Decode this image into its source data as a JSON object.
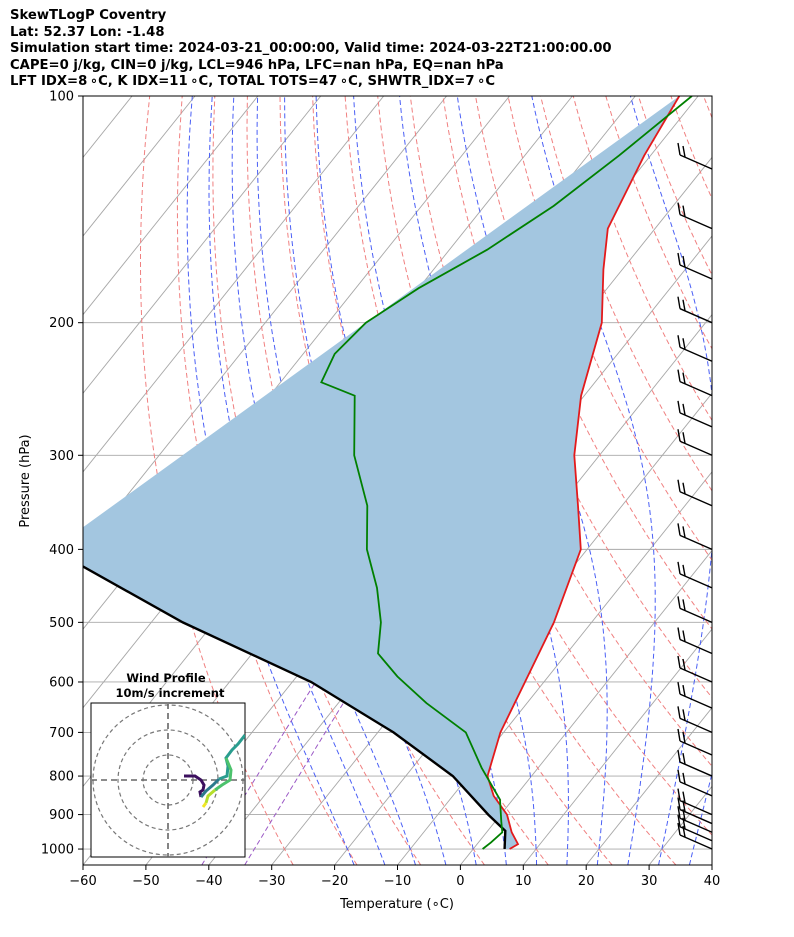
{
  "header": {
    "lines": [
      "SkewTLogP Coventry",
      "Lat: 52.37   Lon: -1.48",
      "Simulation start time: 2024-03-21_00:00:00, Valid time: 2024-03-22T21:00:00.00",
      "CAPE=0 j/kg, CIN=0 j/kg, LCL=946 hPa, LFC=nan hPa, EQ=nan hPa",
      "LFT IDX=8 ∘C, K IDX=11 ∘C, TOTAL TOTS=47 ∘C, SHWTR_IDX=7 ∘C"
    ]
  },
  "chart_data": {
    "type": "line",
    "xlabel": "Temperature (∘C)",
    "ylabel": "Pressure (hPa)",
    "xlim": [
      -60,
      40
    ],
    "ylim": [
      1050,
      100
    ],
    "y_scale": "log",
    "skew": true,
    "x_ticks": [
      -60,
      -50,
      -40,
      -30,
      -20,
      -10,
      0,
      10,
      20,
      30,
      40
    ],
    "y_ticks": [
      1000,
      900,
      800,
      700,
      600,
      500,
      400,
      300,
      200,
      100
    ],
    "grid": true,
    "colors": {
      "temperature": "#e31a1c",
      "dewpoint": "#008000",
      "parcel": "#000000",
      "shade": "#a3c6e0",
      "dry_adiabat": "#f08080",
      "moist_adiabat": "#4a5ff5",
      "mixing_ratio": "#9b59c6",
      "isotherm": "#a8a8a8",
      "barb": "#000000"
    },
    "series": [
      {
        "key": "temperature",
        "x": [
          5.8,
          6.5,
          4.0,
          1.0,
          -3.5,
          -7.0,
          -10.5,
          -13.0,
          -16.0,
          -21.0,
          -27.0,
          -34.0,
          -40.5,
          -46.5,
          -53.0,
          -57.5,
          -61.0,
          -63.0
        ],
        "y": [
          1000,
          985,
          950,
          900,
          850,
          800,
          700,
          600,
          500,
          400,
          350,
          300,
          250,
          200,
          170,
          150,
          120,
          100
        ]
      },
      {
        "key": "dewpoint",
        "x": [
          1.5,
          2.0,
          2.5,
          1.0,
          -2.0,
          -9.0,
          -16.0,
          -26.0,
          -34.0,
          -40.0,
          -43.5,
          -48.5,
          -55.0,
          -60.5,
          -69.0,
          -76.5,
          -83.5,
          -85.0,
          -84.0,
          -80.0,
          -74.0,
          -69.0,
          -65.0,
          -61.0
        ],
        "y": [
          1000,
          980,
          950,
          920,
          860,
          780,
          700,
          640,
          590,
          550,
          500,
          450,
          400,
          350,
          300,
          250,
          240,
          220,
          200,
          180,
          160,
          140,
          120,
          100
        ]
      },
      {
        "key": "parcel",
        "x": [
          5.0,
          2.8,
          -2.0,
          -12.5,
          -27.5,
          -47.0,
          -75.0,
          -105.0
        ],
        "y": [
          1000,
          946,
          900,
          800,
          700,
          600,
          500,
          400
        ]
      }
    ],
    "wind_barbs": {
      "pressure": [
        1000,
        975,
        950,
        925,
        900,
        850,
        800,
        750,
        700,
        650,
        600,
        550,
        500,
        450,
        400,
        350,
        300,
        275,
        250,
        225,
        200,
        175,
        150,
        125,
        100
      ]
    },
    "inset": {
      "title": "Wind Profile",
      "subtitle": "10m/s increment"
    }
  }
}
